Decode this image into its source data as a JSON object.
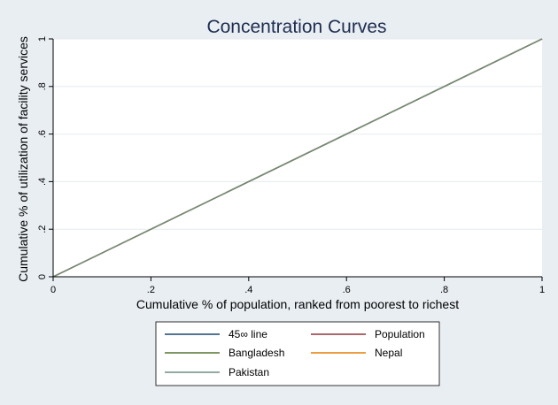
{
  "chart_data": {
    "type": "line",
    "title": "Concentration Curves",
    "xlabel": "Cumulative % of population, ranked from poorest to richest",
    "ylabel": "Cumulative % of utilization of facility services",
    "xlim": [
      0,
      1
    ],
    "ylim": [
      0,
      1
    ],
    "x_ticks": [
      0,
      0.2,
      0.4,
      0.6,
      0.8,
      1
    ],
    "x_tick_labels": [
      "0",
      ".2",
      ".4",
      ".6",
      ".8",
      "1"
    ],
    "y_ticks": [
      0,
      0.2,
      0.4,
      0.6,
      0.8,
      1
    ],
    "y_tick_labels": [
      "0",
      ".2",
      ".4",
      ".6",
      ".8",
      "1"
    ],
    "grid": "horizontal",
    "legend_position": "bottom",
    "series": [
      {
        "name": "45∞ line",
        "color": "#1a476f",
        "x": [
          0,
          1
        ],
        "y": [
          0,
          1
        ]
      },
      {
        "name": "Population",
        "color": "#90353b",
        "x": [
          0,
          1
        ],
        "y": [
          0,
          1
        ]
      },
      {
        "name": "Bangladesh",
        "color": "#55752f",
        "x": [
          0,
          1
        ],
        "y": [
          0,
          1
        ]
      },
      {
        "name": "Nepal",
        "color": "#e37e00",
        "x": [
          0,
          1
        ],
        "y": [
          0,
          1
        ]
      },
      {
        "name": "Pakistan",
        "color": "#6e8e84",
        "x": [
          0,
          1
        ],
        "y": [
          0,
          1
        ]
      }
    ]
  }
}
